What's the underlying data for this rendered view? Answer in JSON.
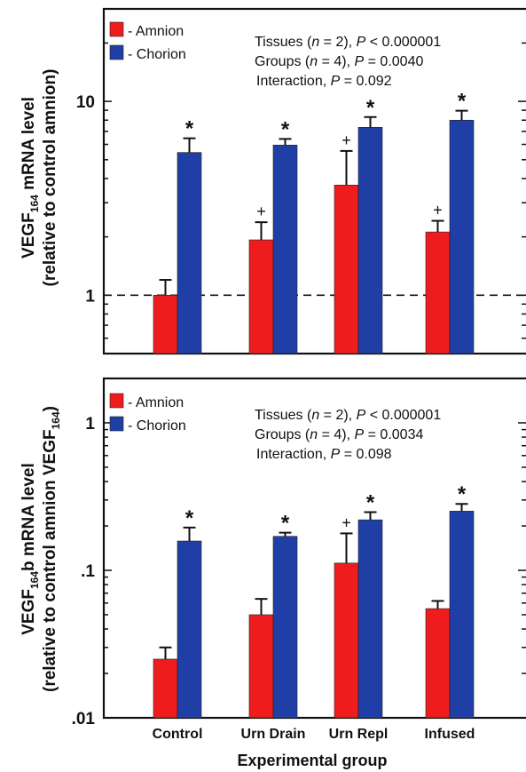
{
  "figure": {
    "xlabel": "Experimental  group",
    "categories": [
      "Control",
      "Urn Drain",
      "Urn Repl",
      "Infused"
    ]
  },
  "colors": {
    "amnion": "#ee1c1c",
    "chorion": "#1f3fa6",
    "axis": "#111111",
    "reference_line": "#111111"
  },
  "chart_data": [
    {
      "type": "bar",
      "panel": "top",
      "categories": [
        "Control",
        "Urn Drain",
        "Urn Repl",
        "Infused"
      ],
      "yscale": "log",
      "ylim": [
        0.5,
        30
      ],
      "ytick_values": [
        1,
        10
      ],
      "ytick_labels": [
        "1",
        "10"
      ],
      "ylabel_main": "VEGF",
      "ylabel_sub": "164",
      "ylabel_rest": " mRNA level",
      "ylabel_line2": "(relative to control amnion)",
      "reference_line": 1,
      "series": [
        {
          "name": "- Amnion",
          "key": "amnion",
          "values": [
            1.0,
            1.93,
            3.7,
            2.12
          ],
          "errors": [
            1.2,
            2.38,
            5.55,
            2.42
          ],
          "markers": [
            "",
            "+",
            "+",
            "+"
          ]
        },
        {
          "name": "- Chorion",
          "key": "chorion",
          "values": [
            5.45,
            5.95,
            7.35,
            8.0
          ],
          "errors": [
            6.45,
            6.4,
            8.3,
            8.95
          ],
          "markers": [
            "*",
            "*",
            "*",
            "*"
          ]
        }
      ],
      "stats": [
        {
          "pre": "Tissues (",
          "var": "n",
          "mid": " = 2), ",
          "pvar": "P",
          "post": " < 0.000001"
        },
        {
          "pre": "Groups (",
          "var": "n",
          "mid": " = 4), ",
          "pvar": "P",
          "post": " = 0.0040"
        },
        {
          "pre": "Interaction, ",
          "var": "",
          "mid": "",
          "pvar": "P",
          "post": " = 0.092"
        }
      ]
    },
    {
      "type": "bar",
      "panel": "bottom",
      "categories": [
        "Control",
        "Urn Drain",
        "Urn Repl",
        "Infused"
      ],
      "yscale": "log",
      "ylim": [
        0.01,
        2
      ],
      "ytick_values": [
        0.01,
        0.1,
        1
      ],
      "ytick_labels": [
        ".01",
        ".1",
        "1"
      ],
      "ylabel_main": "VEGF",
      "ylabel_sub": "164",
      "ylabel_rest": "b mRNA level",
      "ylabel_line2_pre": "(relative to control amnion VEGF",
      "ylabel_line2_sub": "164",
      "ylabel_line2_post": ")",
      "series": [
        {
          "name": "- Amnion",
          "key": "amnion",
          "values": [
            0.025,
            0.05,
            0.112,
            0.055
          ],
          "errors": [
            0.03,
            0.064,
            0.178,
            0.062
          ],
          "markers": [
            "",
            "",
            "+",
            ""
          ]
        },
        {
          "name": "- Chorion",
          "key": "chorion",
          "values": [
            0.158,
            0.17,
            0.22,
            0.252
          ],
          "errors": [
            0.195,
            0.18,
            0.248,
            0.282
          ],
          "markers": [
            "*",
            "*",
            "*",
            "*"
          ]
        }
      ],
      "stats": [
        {
          "pre": "Tissues (",
          "var": "n",
          "mid": " = 2), ",
          "pvar": "P",
          "post": " < 0.000001"
        },
        {
          "pre": "Groups (",
          "var": "n",
          "mid": " = 4), ",
          "pvar": "P",
          "post": " = 0.0034"
        },
        {
          "pre": "Interaction, ",
          "var": "",
          "mid": "",
          "pvar": "P",
          "post": " = 0.098"
        }
      ]
    }
  ]
}
